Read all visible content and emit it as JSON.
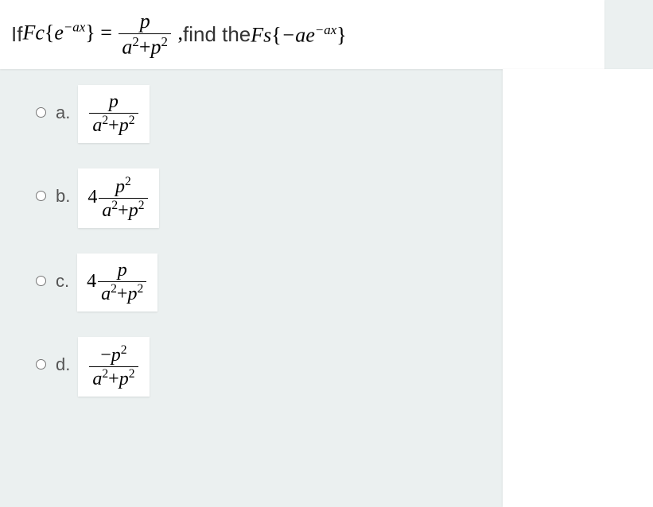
{
  "question": {
    "prefix": "If ",
    "func1": "Fc",
    "arg1_open": "{",
    "arg1_e": "e",
    "arg1_exp": "−ax",
    "arg1_close": "}",
    "equals": " = ",
    "frac_num": "p",
    "frac_den_a": "a",
    "frac_den_p": "p",
    "after_frac": " , ",
    "mid": "find the ",
    "func2": "Fs",
    "arg2_open": "{",
    "arg2_neg": "−a",
    "arg2_e": "e",
    "arg2_exp": "−ax",
    "arg2_close": "}"
  },
  "options": [
    {
      "label": "a.",
      "coef": "",
      "num_type": "p",
      "num": "p",
      "den_a": "a",
      "den_p": "p"
    },
    {
      "label": "b.",
      "coef": "4",
      "num_type": "p2",
      "num_base": "p",
      "den_a": "a",
      "den_p": "p"
    },
    {
      "label": "c.",
      "coef": "4",
      "num_type": "p",
      "num": "p",
      "den_a": "a",
      "den_p": "p"
    },
    {
      "label": "d.",
      "coef": "",
      "num_type": "negp2",
      "num_neg": "−",
      "num_base": "p",
      "den_a": "a",
      "den_p": "p"
    }
  ],
  "styling": {
    "bg_color": "#ebf0f0",
    "box_bg": "#ffffff",
    "text_color": "#333333",
    "label_color": "#555555",
    "question_fontsize": 26,
    "option_fontsize": 24,
    "label_fontsize": 22
  }
}
